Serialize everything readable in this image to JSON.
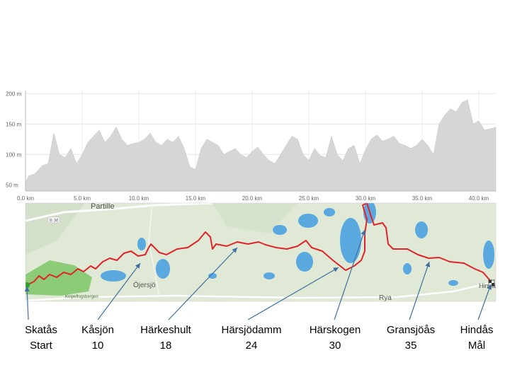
{
  "chart_data": {
    "type": "area",
    "xlabel": "",
    "ylabel": "",
    "x_unit": "km",
    "y_unit": "m",
    "xlim": [
      0,
      41.5
    ],
    "ylim": [
      40,
      205
    ],
    "x_ticks": [
      0,
      5,
      10,
      15,
      20,
      25,
      30,
      35,
      40
    ],
    "x_tick_labels": [
      "0.0 km",
      "5.0 km",
      "10.0 km",
      "15.0 km",
      "20.0 km",
      "25.0 km",
      "30.0 km",
      "35.0 km",
      "40.0 km"
    ],
    "y_ticks": [
      50,
      100,
      150,
      200
    ],
    "y_tick_labels": [
      "50 m",
      "100 m",
      "150 m",
      "200 m"
    ],
    "grid": true,
    "fill_color": "#d6d6d6",
    "series": [
      {
        "x": [
          0,
          0.3,
          0.8,
          1.5,
          2.0,
          2.5,
          3.0,
          3.5,
          4.0,
          4.5,
          5.0,
          5.5,
          6.0,
          6.5,
          7.0,
          7.5,
          8.0,
          8.5,
          9.0,
          9.5,
          10.0,
          10.5,
          11.0,
          11.5,
          12.0,
          12.5,
          13.0,
          13.5,
          14.0,
          14.5,
          15.0,
          15.5,
          16.0,
          16.5,
          17.0,
          17.5,
          18.0,
          18.5,
          19.0,
          19.5,
          20.0,
          20.5,
          21.0,
          21.5,
          22.0,
          22.5,
          23.0,
          23.5,
          24.0,
          24.5,
          25.0,
          25.5,
          26.0,
          26.5,
          27.0,
          27.5,
          28.0,
          28.5,
          29.0,
          29.5,
          30.0,
          30.5,
          31.0,
          31.5,
          32.0,
          32.5,
          33.0,
          33.5,
          34.0,
          34.5,
          35.0,
          35.5,
          36.0,
          36.5,
          37.0,
          37.5,
          38.0,
          38.5,
          39.0,
          39.5,
          40.0,
          40.5,
          41.0,
          41.5
        ],
        "y": [
          55,
          65,
          68,
          82,
          85,
          135,
          100,
          95,
          110,
          85,
          100,
          120,
          130,
          140,
          120,
          130,
          145,
          125,
          115,
          118,
          120,
          125,
          135,
          120,
          115,
          125,
          120,
          130,
          110,
          80,
          75,
          110,
          125,
          120,
          115,
          100,
          105,
          110,
          100,
          95,
          105,
          112,
          100,
          90,
          85,
          100,
          115,
          130,
          125,
          100,
          90,
          110,
          98,
          95,
          130,
          100,
          90,
          110,
          115,
          85,
          108,
          125,
          132,
          122,
          125,
          130,
          118,
          115,
          110,
          115,
          125,
          115,
          100,
          150,
          165,
          175,
          170,
          185,
          190,
          150,
          155,
          140,
          142,
          145
        ]
      }
    ]
  },
  "map": {
    "place_labels": [
      "Partille",
      "Öjersjö",
      "Knipeflogsbergen",
      "Rya",
      "Hindås",
      "B 36"
    ],
    "colors": {
      "land": "#dfe9d5",
      "water": "#5aa8e0",
      "route": "#e0232a",
      "forest": "#8ccc78"
    }
  },
  "checkpoints": [
    {
      "name": "Skatås",
      "value": "Start"
    },
    {
      "name": "Kåsjön",
      "value": "10"
    },
    {
      "name": "Härkeshult",
      "value": "18"
    },
    {
      "name": "Härsjödamm",
      "value": "24"
    },
    {
      "name": "Härskogen",
      "value": "30"
    },
    {
      "name": "Gransjöås",
      "value": "35"
    },
    {
      "name": "Hindås",
      "value": "Mål"
    }
  ]
}
